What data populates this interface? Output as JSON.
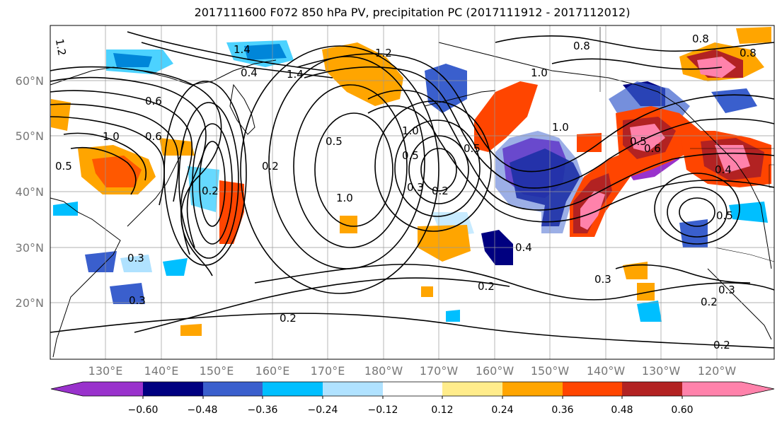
{
  "title": "2017111600 F072 850 hPa PV, precipitation PC (2017111912 - 2017112012)",
  "latitude_labels": [
    "60°N",
    "50°N",
    "40°N",
    "30°N",
    "20°N"
  ],
  "longitude_labels": [
    "130°E",
    "140°E",
    "150°E",
    "160°E",
    "170°E",
    "180°W",
    "170°W",
    "160°W",
    "150°W",
    "140°W",
    "130°W",
    "120°W"
  ],
  "contour_labels": [
    "1.2",
    "1.4",
    "0.4",
    "1.4",
    "0.6",
    "1.2",
    "1.0",
    "0.8",
    "0.8",
    "1.0",
    "0.6",
    "1.0",
    "0.5",
    "0.2",
    "0.5",
    "0.3",
    "0.2",
    "1.0",
    "0.5",
    "0.3",
    "0.2",
    "0.5",
    "1.0",
    "0.3",
    "0.4",
    "0.3",
    "0.2",
    "0.2",
    "0.3",
    "0.2",
    "0.2",
    "0.5",
    "0.6",
    "0.4",
    "0.5",
    "0.8"
  ],
  "colorbar": {
    "ticks": [
      "−0.60",
      "−0.48",
      "−0.36",
      "−0.24",
      "−0.12",
      "0.12",
      "0.24",
      "0.36",
      "0.48",
      "0.60"
    ],
    "colors": [
      "#9932cc",
      "#000080",
      "#3a5fcd",
      "#00bfff",
      "#b0e2ff",
      "#ffffff",
      "#ffec8b",
      "#ffa500",
      "#ff4500",
      "#b22222",
      "#ff82ab",
      "#ff82ab"
    ]
  }
}
